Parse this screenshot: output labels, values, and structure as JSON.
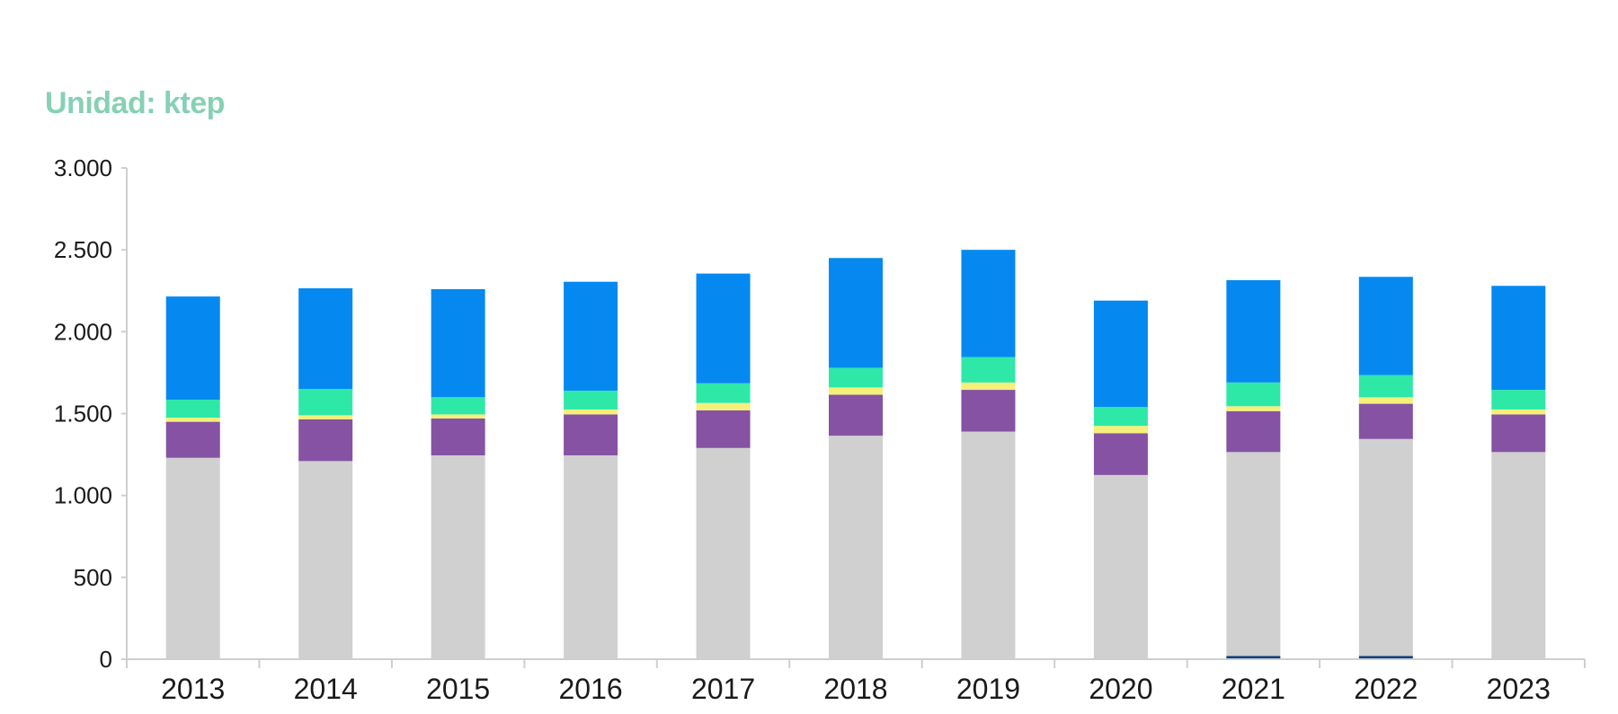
{
  "unit_label": "Unidad: ktep",
  "colors": {
    "unit_label": "#86d1b6",
    "axis": "#cfcfcf"
  },
  "chart_data": {
    "type": "bar",
    "stacked": true,
    "title": "",
    "xlabel": "",
    "ylabel": "",
    "ylim": [
      0,
      3000
    ],
    "yticks": [
      0,
      500,
      1000,
      1500,
      2000,
      2500,
      3000
    ],
    "ytick_labels": [
      "0",
      "500",
      "1.000",
      "1.500",
      "2.000",
      "2.500",
      "3.000"
    ],
    "categories": [
      "2013",
      "2014",
      "2015",
      "2016",
      "2017",
      "2018",
      "2019",
      "2020",
      "2021",
      "2022",
      "2023"
    ],
    "series": [
      {
        "name": "dark-blue",
        "color": "#0b3f7a",
        "values": [
          0,
          0,
          0,
          0,
          0,
          0,
          0,
          0,
          20,
          20,
          0
        ]
      },
      {
        "name": "light-gray",
        "color": "#d0d0d0",
        "values": [
          1230,
          1210,
          1245,
          1245,
          1290,
          1365,
          1390,
          1125,
          1245,
          1325,
          1265
        ]
      },
      {
        "name": "purple",
        "color": "#8652a3",
        "values": [
          220,
          255,
          225,
          250,
          230,
          250,
          255,
          255,
          250,
          215,
          230
        ]
      },
      {
        "name": "yellow",
        "color": "#f5f07a",
        "values": [
          25,
          25,
          25,
          30,
          45,
          45,
          45,
          45,
          30,
          40,
          30
        ]
      },
      {
        "name": "mint-green",
        "color": "#2ee8a8",
        "values": [
          110,
          160,
          105,
          115,
          120,
          120,
          155,
          115,
          145,
          135,
          120
        ]
      },
      {
        "name": "bright-blue",
        "color": "#0589f0",
        "values": [
          630,
          615,
          660,
          665,
          670,
          670,
          655,
          650,
          625,
          600,
          635
        ]
      }
    ]
  }
}
